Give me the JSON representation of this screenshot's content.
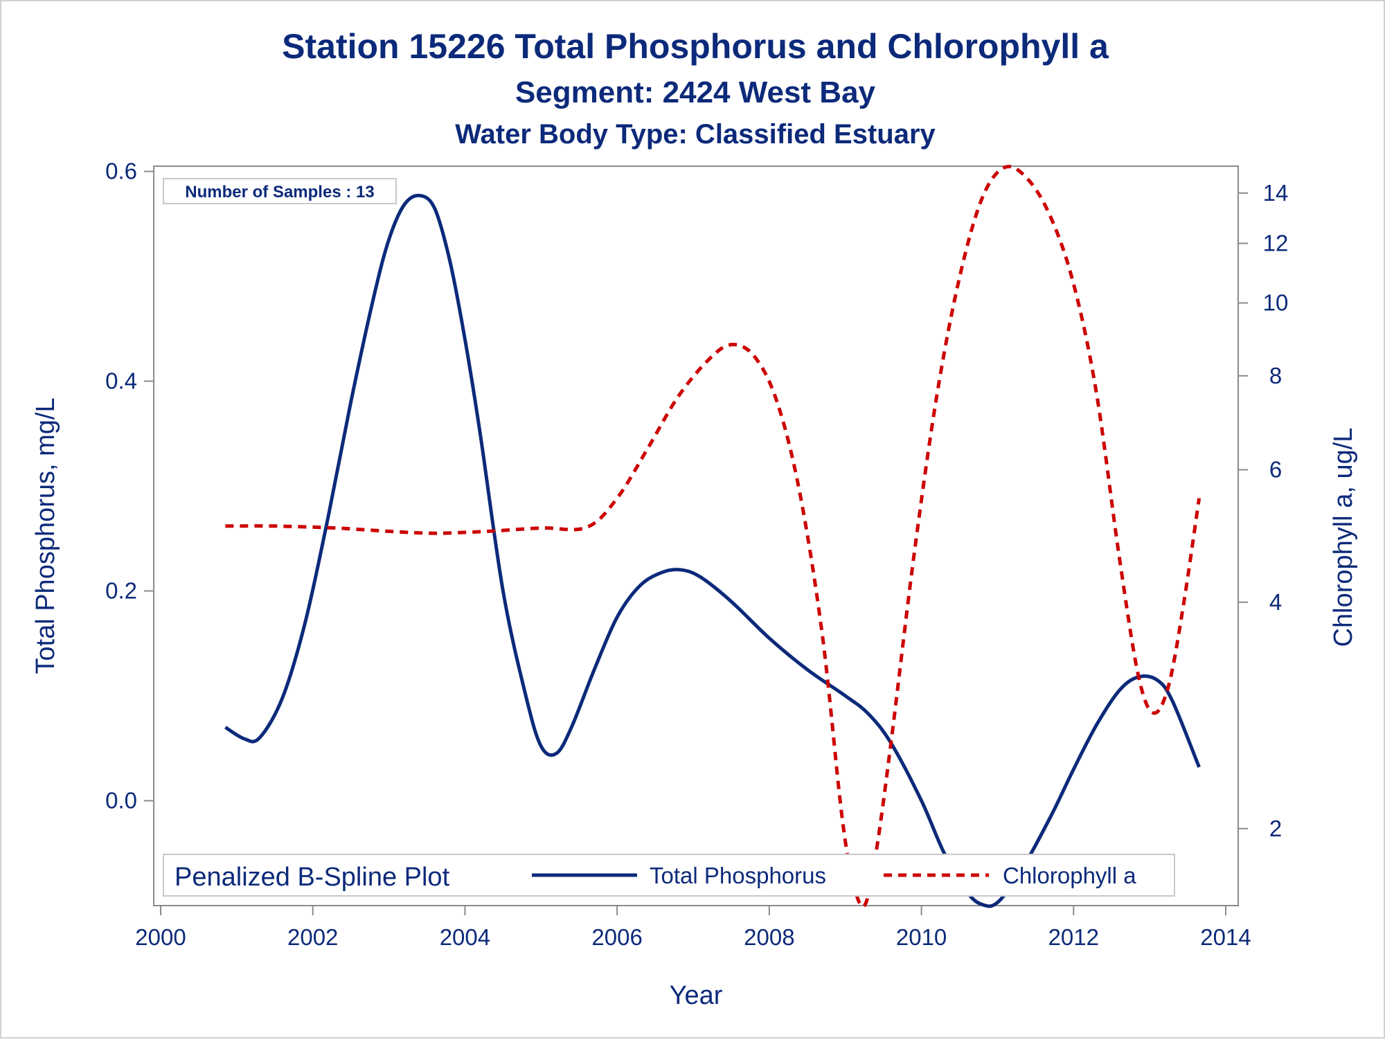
{
  "colors": {
    "text": "#0c2a7a",
    "axis": "#8a8a8a",
    "phosphorus": "#0c2a7a",
    "chlorophyll": "#cc0000",
    "border": "#d0d0d0"
  },
  "chart_data": {
    "type": "line",
    "title": "Station 15226  Total Phosphorus and Chlorophyll a",
    "subtitle": "Segment: 2424  West Bay",
    "subtitle2": "Water Body Type: Classified Estuary",
    "xlabel": "Year",
    "ylabel": "Total Phosphorus, mg/L",
    "y2label": "Chlorophyll a, ug/L",
    "xlim": [
      2000,
      2014
    ],
    "ylim": [
      -0.1,
      0.605
    ],
    "y2lim": [
      1.58,
      15.2
    ],
    "y2scale": "log",
    "xticks": [
      "2000",
      "2002",
      "2004",
      "2006",
      "2008",
      "2010",
      "2012",
      "2014"
    ],
    "yticks": [
      "0.0",
      "0.2",
      "0.4",
      "0.6"
    ],
    "y2ticks": [
      "2",
      "4",
      "6",
      "8",
      "10",
      "12",
      "14"
    ],
    "annotation": "Number of Samples : 13",
    "legend": {
      "title": "Penalized B-Spline Plot",
      "position": "bottom-inside",
      "entries": [
        "Total Phosphorus",
        "Chlorophyll a"
      ]
    },
    "series": [
      {
        "name": "Total Phosphorus",
        "axis": "left",
        "style": "solid",
        "points": [
          [
            2000.85,
            0.07
          ],
          [
            2001.1,
            0.059
          ],
          [
            2001.3,
            0.06
          ],
          [
            2001.6,
            0.098
          ],
          [
            2001.9,
            0.17
          ],
          [
            2002.2,
            0.27
          ],
          [
            2002.5,
            0.38
          ],
          [
            2002.8,
            0.48
          ],
          [
            2003.0,
            0.535
          ],
          [
            2003.2,
            0.568
          ],
          [
            2003.4,
            0.577
          ],
          [
            2003.6,
            0.565
          ],
          [
            2003.8,
            0.515
          ],
          [
            2004.0,
            0.44
          ],
          [
            2004.2,
            0.35
          ],
          [
            2004.5,
            0.2
          ],
          [
            2004.8,
            0.1
          ],
          [
            2005.0,
            0.052
          ],
          [
            2005.2,
            0.045
          ],
          [
            2005.4,
            0.07
          ],
          [
            2005.7,
            0.125
          ],
          [
            2006.0,
            0.175
          ],
          [
            2006.3,
            0.205
          ],
          [
            2006.6,
            0.218
          ],
          [
            2006.85,
            0.22
          ],
          [
            2007.1,
            0.213
          ],
          [
            2007.5,
            0.19
          ],
          [
            2008.0,
            0.155
          ],
          [
            2008.5,
            0.125
          ],
          [
            2009.0,
            0.1
          ],
          [
            2009.3,
            0.083
          ],
          [
            2009.6,
            0.055
          ],
          [
            2010.0,
            0.0
          ],
          [
            2010.3,
            -0.05
          ],
          [
            2010.6,
            -0.087
          ],
          [
            2010.8,
            -0.099
          ],
          [
            2011.0,
            -0.097
          ],
          [
            2011.3,
            -0.068
          ],
          [
            2011.7,
            -0.015
          ],
          [
            2012.0,
            0.03
          ],
          [
            2012.3,
            0.072
          ],
          [
            2012.6,
            0.105
          ],
          [
            2012.85,
            0.118
          ],
          [
            2013.1,
            0.115
          ],
          [
            2013.3,
            0.095
          ],
          [
            2013.65,
            0.032
          ]
        ]
      },
      {
        "name": "Chlorophyll a",
        "axis": "right",
        "style": "dashed",
        "points": [
          [
            2000.85,
            5.05
          ],
          [
            2001.5,
            5.05
          ],
          [
            2002.3,
            5.02
          ],
          [
            2003.0,
            4.97
          ],
          [
            2003.6,
            4.94
          ],
          [
            2004.3,
            4.97
          ],
          [
            2005.0,
            5.02
          ],
          [
            2005.6,
            5.03
          ],
          [
            2006.0,
            5.5
          ],
          [
            2006.4,
            6.4
          ],
          [
            2006.8,
            7.5
          ],
          [
            2007.2,
            8.4
          ],
          [
            2007.5,
            8.8
          ],
          [
            2007.8,
            8.5
          ],
          [
            2008.1,
            7.4
          ],
          [
            2008.4,
            5.6
          ],
          [
            2008.7,
            3.6
          ],
          [
            2008.95,
            2.1
          ],
          [
            2009.1,
            1.7
          ],
          [
            2009.25,
            1.58
          ],
          [
            2009.4,
            1.85
          ],
          [
            2009.6,
            2.6
          ],
          [
            2009.9,
            4.6
          ],
          [
            2010.2,
            7.5
          ],
          [
            2010.5,
            10.8
          ],
          [
            2010.8,
            13.8
          ],
          [
            2011.1,
            15.15
          ],
          [
            2011.4,
            14.6
          ],
          [
            2011.7,
            13.0
          ],
          [
            2012.0,
            10.6
          ],
          [
            2012.3,
            7.6
          ],
          [
            2012.6,
            4.6
          ],
          [
            2012.85,
            3.2
          ],
          [
            2013.05,
            2.85
          ],
          [
            2013.25,
            3.1
          ],
          [
            2013.45,
            4.0
          ],
          [
            2013.65,
            5.5
          ]
        ]
      }
    ]
  }
}
